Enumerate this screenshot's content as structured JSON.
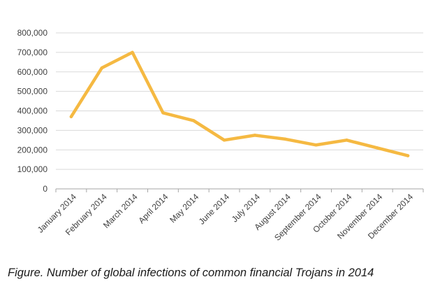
{
  "chart_data": {
    "type": "line",
    "categories": [
      "January 2014",
      "February 2014",
      "March 2014",
      "April 2014",
      "May 2014",
      "June 2014",
      "July 2014",
      "August 2014",
      "September 2014",
      "October 2014",
      "November 2014",
      "December 2014"
    ],
    "series": [
      {
        "values": [
          370000,
          620000,
          700000,
          390000,
          350000,
          250000,
          275000,
          255000,
          225000,
          250000,
          210000,
          170000
        ],
        "color": "#f5b942"
      }
    ],
    "y_ticks": [
      "0",
      "100,000",
      "200,000",
      "300,000",
      "400,000",
      "500,000",
      "600,000",
      "700,000",
      "800,000"
    ],
    "ylim": [
      0,
      800000
    ],
    "grid": true,
    "legend": "none"
  },
  "caption": "Figure. Number of global infections of common financial Trojans in 2014",
  "colors": {
    "line": "#f5b942",
    "grid": "#d9d9d9",
    "axis": "#a6a6a6",
    "text": "#404040"
  }
}
